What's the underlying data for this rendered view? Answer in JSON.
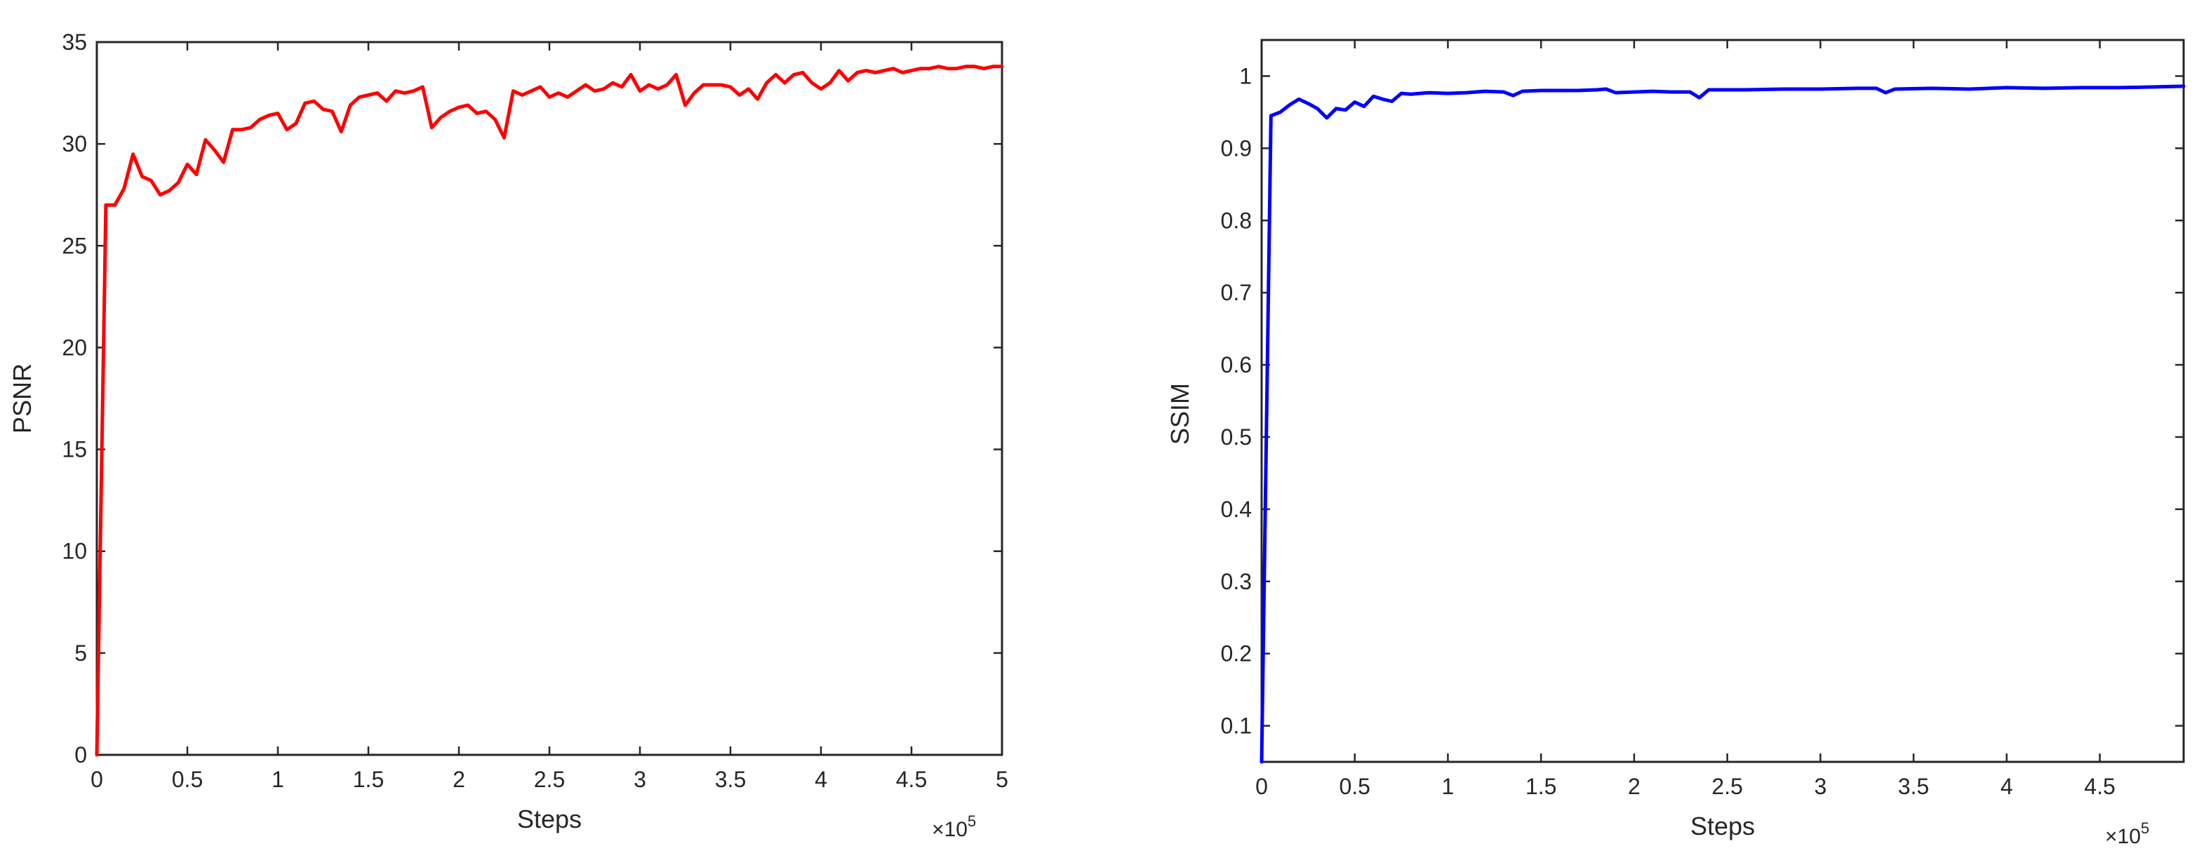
{
  "chart_data": [
    {
      "type": "line",
      "title": "",
      "xlabel": "Steps",
      "ylabel": "PSNR",
      "x_multiplier_label": "×10",
      "x_multiplier_exponent": "5",
      "xlim": [
        0,
        500000
      ],
      "ylim": [
        0,
        35
      ],
      "xticks": [
        0,
        50000,
        100000,
        150000,
        200000,
        250000,
        300000,
        350000,
        400000,
        450000,
        500000
      ],
      "xtick_labels": [
        "0",
        "0.5",
        "1",
        "1.5",
        "2",
        "2.5",
        "3",
        "3.5",
        "4",
        "4.5",
        "5"
      ],
      "yticks": [
        0,
        5,
        10,
        15,
        20,
        25,
        30,
        35
      ],
      "ytick_labels": [
        "0",
        "5",
        "10",
        "15",
        "20",
        "25",
        "30",
        "35"
      ],
      "grid": false,
      "series": [
        {
          "color": "#ff0000",
          "x": [
            0,
            5000,
            10000,
            15000,
            20000,
            25000,
            30000,
            35000,
            40000,
            45000,
            50000,
            55000,
            60000,
            65000,
            70000,
            75000,
            80000,
            85000,
            90000,
            95000,
            100000,
            105000,
            110000,
            115000,
            120000,
            125000,
            130000,
            135000,
            140000,
            145000,
            150000,
            155000,
            160000,
            165000,
            170000,
            175000,
            180000,
            185000,
            190000,
            195000,
            200000,
            205000,
            210000,
            215000,
            220000,
            225000,
            230000,
            235000,
            240000,
            245000,
            250000,
            255000,
            260000,
            265000,
            270000,
            275000,
            280000,
            285000,
            290000,
            295000,
            300000,
            305000,
            310000,
            315000,
            320000,
            325000,
            330000,
            335000,
            340000,
            345000,
            350000,
            355000,
            360000,
            365000,
            370000,
            375000,
            380000,
            385000,
            390000,
            395000,
            400000,
            405000,
            410000,
            415000,
            420000,
            425000,
            430000,
            435000,
            440000,
            445000,
            450000,
            455000,
            460000,
            465000,
            470000,
            475000,
            480000,
            485000,
            490000,
            495000,
            500000
          ],
          "values": [
            0,
            27.0,
            27.0,
            27.8,
            29.5,
            28.4,
            28.2,
            27.5,
            27.7,
            28.1,
            29.0,
            28.5,
            30.2,
            29.7,
            29.1,
            30.7,
            30.7,
            30.8,
            31.2,
            31.4,
            31.5,
            30.7,
            31.0,
            32.0,
            32.1,
            31.7,
            31.6,
            30.6,
            31.9,
            32.3,
            32.4,
            32.5,
            32.1,
            32.6,
            32.5,
            32.6,
            32.8,
            30.8,
            31.3,
            31.6,
            31.8,
            31.9,
            31.5,
            31.6,
            31.2,
            30.3,
            32.6,
            32.4,
            32.6,
            32.8,
            32.3,
            32.5,
            32.3,
            32.6,
            32.9,
            32.6,
            32.7,
            33.0,
            32.8,
            33.4,
            32.6,
            32.9,
            32.7,
            32.9,
            33.4,
            31.9,
            32.5,
            32.9,
            32.9,
            32.9,
            32.8,
            32.4,
            32.7,
            32.2,
            33.0,
            33.4,
            33.0,
            33.4,
            33.5,
            33.0,
            32.7,
            33.0,
            33.6,
            33.1,
            33.5,
            33.6,
            33.5,
            33.6,
            33.7,
            33.5,
            33.6,
            33.7,
            33.7,
            33.8,
            33.7,
            33.7,
            33.8,
            33.8,
            33.7,
            33.8,
            33.8
          ]
        }
      ]
    },
    {
      "type": "line",
      "title": "",
      "xlabel": "Steps",
      "ylabel": "SSIM",
      "x_multiplier_label": "×10",
      "x_multiplier_exponent": "5",
      "xlim": [
        0,
        495000
      ],
      "ylim": [
        0.05,
        1.05
      ],
      "xticks": [
        0,
        50000,
        100000,
        150000,
        200000,
        250000,
        300000,
        350000,
        400000,
        450000
      ],
      "xtick_labels": [
        "0",
        "0.5",
        "1",
        "1.5",
        "2",
        "2.5",
        "3",
        "3.5",
        "4",
        "4.5"
      ],
      "yticks": [
        0.1,
        0.2,
        0.3,
        0.4,
        0.5,
        0.6,
        0.7,
        0.8,
        0.9,
        1.0
      ],
      "ytick_labels": [
        "0.1",
        "0.2",
        "0.3",
        "0.4",
        "0.5",
        "0.6",
        "0.7",
        "0.8",
        "0.9",
        "1"
      ],
      "grid": false,
      "series": [
        {
          "color": "#0000ff",
          "x": [
            0,
            5000,
            10000,
            15000,
            20000,
            25000,
            30000,
            35000,
            40000,
            45000,
            50000,
            55000,
            60000,
            65000,
            70000,
            75000,
            80000,
            90000,
            100000,
            110000,
            120000,
            130000,
            135000,
            140000,
            150000,
            160000,
            170000,
            180000,
            185000,
            190000,
            200000,
            210000,
            220000,
            230000,
            235000,
            240000,
            260000,
            280000,
            300000,
            320000,
            330000,
            335000,
            340000,
            360000,
            380000,
            400000,
            420000,
            440000,
            460000,
            480000,
            495000
          ],
          "values": [
            0.05,
            0.945,
            0.95,
            0.96,
            0.968,
            0.962,
            0.955,
            0.942,
            0.955,
            0.953,
            0.964,
            0.958,
            0.972,
            0.968,
            0.965,
            0.976,
            0.975,
            0.977,
            0.976,
            0.977,
            0.979,
            0.978,
            0.973,
            0.979,
            0.98,
            0.98,
            0.98,
            0.981,
            0.982,
            0.977,
            0.978,
            0.979,
            0.978,
            0.978,
            0.97,
            0.981,
            0.981,
            0.982,
            0.982,
            0.983,
            0.983,
            0.977,
            0.982,
            0.983,
            0.982,
            0.984,
            0.983,
            0.984,
            0.984,
            0.985,
            0.986
          ]
        }
      ]
    }
  ]
}
